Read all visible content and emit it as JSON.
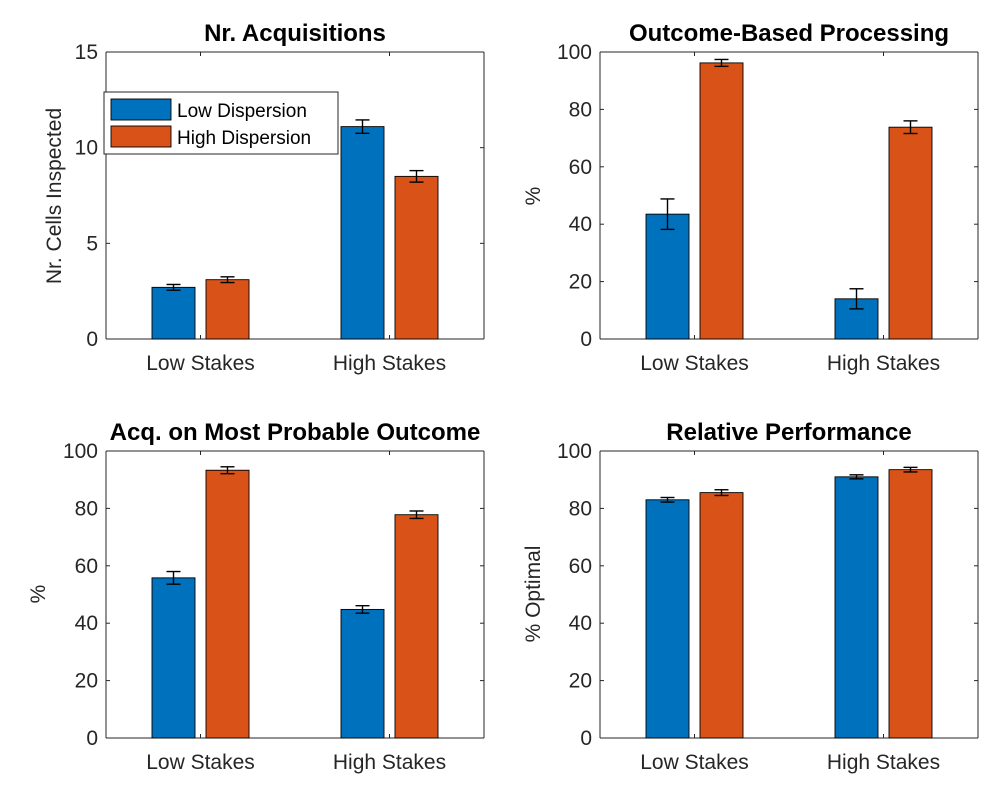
{
  "colors": {
    "low_dispersion": "#0072BD",
    "high_dispersion": "#D95319"
  },
  "chart_data": [
    {
      "type": "bar",
      "title": "Nr. Acquisitions",
      "ylabel": "Nr. Cells Inspected",
      "xlabel": "",
      "categories": [
        "Low Stakes",
        "High Stakes"
      ],
      "ylim": [
        0,
        15
      ],
      "yticks": [
        0,
        5,
        10,
        15
      ],
      "series": [
        {
          "name": "Low Dispersion",
          "values": [
            2.7,
            11.1
          ],
          "errors": [
            0.15,
            0.35
          ]
        },
        {
          "name": "High Dispersion",
          "values": [
            3.1,
            8.5
          ],
          "errors": [
            0.15,
            0.3
          ]
        }
      ],
      "legend": {
        "position": "top-left",
        "entries": [
          "Low Dispersion",
          "High Dispersion"
        ]
      }
    },
    {
      "type": "bar",
      "title": "Outcome-Based Processing",
      "ylabel": "%",
      "xlabel": "",
      "categories": [
        "Low Stakes",
        "High Stakes"
      ],
      "ylim": [
        0,
        100
      ],
      "yticks": [
        0,
        20,
        40,
        60,
        80,
        100
      ],
      "series": [
        {
          "name": "Low Dispersion",
          "values": [
            43.5,
            14.0
          ],
          "errors": [
            5.3,
            3.5
          ]
        },
        {
          "name": "High Dispersion",
          "values": [
            96.2,
            73.8
          ],
          "errors": [
            1.2,
            2.2
          ]
        }
      ]
    },
    {
      "type": "bar",
      "title": "Acq. on Most Probable Outcome",
      "ylabel": "%",
      "xlabel": "",
      "categories": [
        "Low Stakes",
        "High Stakes"
      ],
      "ylim": [
        0,
        100
      ],
      "yticks": [
        0,
        20,
        40,
        60,
        80,
        100
      ],
      "series": [
        {
          "name": "Low Dispersion",
          "values": [
            55.8,
            44.8
          ],
          "errors": [
            2.2,
            1.3
          ]
        },
        {
          "name": "High Dispersion",
          "values": [
            93.3,
            77.8
          ],
          "errors": [
            1.2,
            1.3
          ]
        }
      ]
    },
    {
      "type": "bar",
      "title": "Relative Performance",
      "ylabel": "% Optimal",
      "xlabel": "",
      "categories": [
        "Low Stakes",
        "High Stakes"
      ],
      "ylim": [
        0,
        100
      ],
      "yticks": [
        0,
        20,
        40,
        60,
        80,
        100
      ],
      "series": [
        {
          "name": "Low Dispersion",
          "values": [
            83.0,
            91.0
          ],
          "errors": [
            0.8,
            0.7
          ]
        },
        {
          "name": "High Dispersion",
          "values": [
            85.5,
            93.5
          ],
          "errors": [
            1.0,
            0.8
          ]
        }
      ]
    }
  ]
}
